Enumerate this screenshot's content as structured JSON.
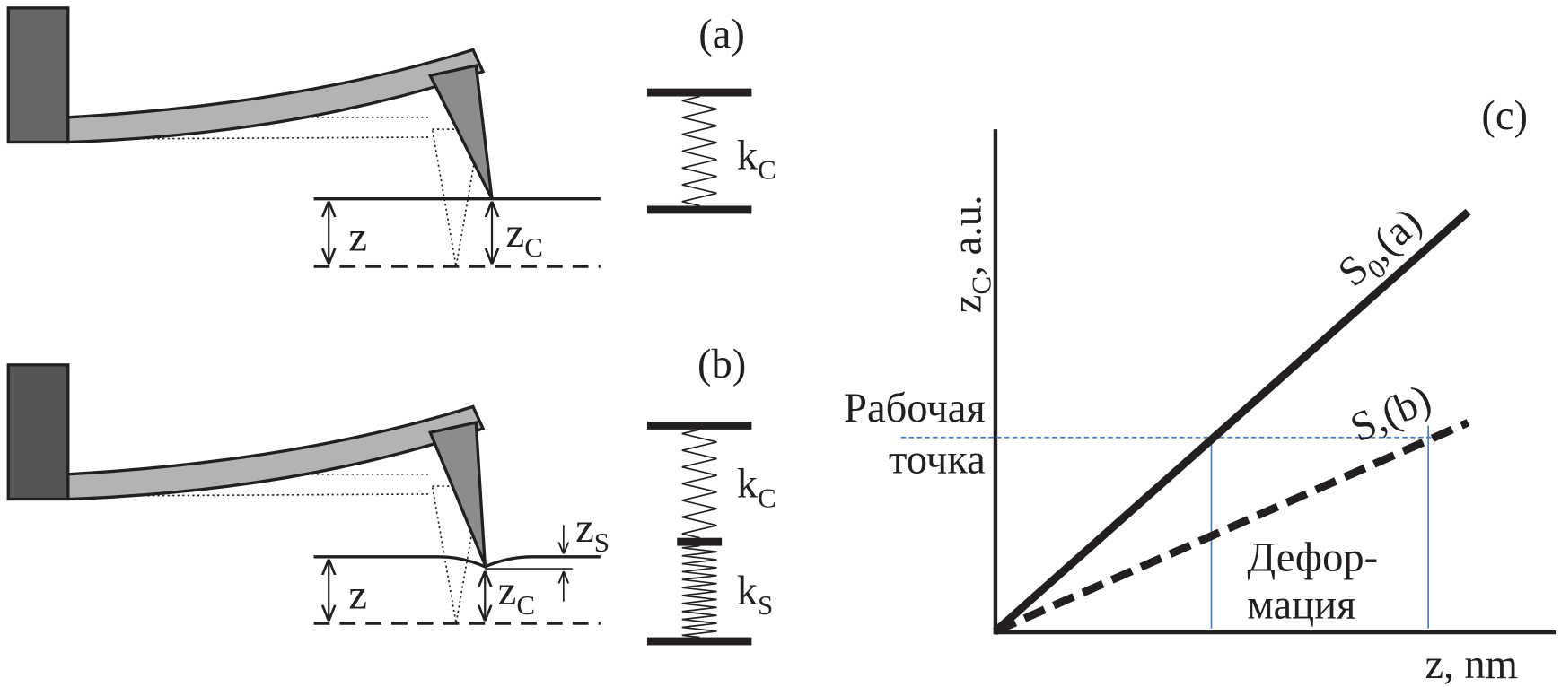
{
  "panel_a": {
    "label": "(a)",
    "spring": {
      "main": "k",
      "sub": "C"
    },
    "z": "z",
    "z_c": {
      "main": "z",
      "sub": "C"
    }
  },
  "panel_b": {
    "label": "(b)",
    "spring_c": {
      "main": "k",
      "sub": "C"
    },
    "spring_s": {
      "main": "k",
      "sub": "S"
    },
    "z": "z",
    "z_c": {
      "main": "z",
      "sub": "C"
    },
    "z_s": {
      "main": "z",
      "sub": "S"
    }
  },
  "panel_c": {
    "label": "(c)",
    "y_axis": {
      "main": "z",
      "sub": "C",
      "rest": ", a.u."
    },
    "x_axis": "z, nm",
    "line_a": {
      "main": "S",
      "sub": "0",
      "rest": ",(a)"
    },
    "line_b": "S,(b)",
    "working_point": [
      "Рабочая",
      "точка"
    ],
    "deformation": [
      "Дефор-",
      "мация"
    ]
  }
}
